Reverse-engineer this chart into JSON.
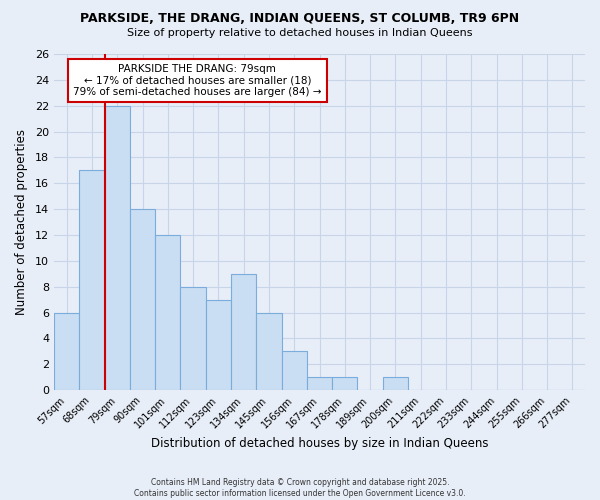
{
  "title1": "PARKSIDE, THE DRANG, INDIAN QUEENS, ST COLUMB, TR9 6PN",
  "title2": "Size of property relative to detached houses in Indian Queens",
  "xlabel": "Distribution of detached houses by size in Indian Queens",
  "ylabel": "Number of detached properties",
  "bar_labels": [
    "57sqm",
    "68sqm",
    "79sqm",
    "90sqm",
    "101sqm",
    "112sqm",
    "123sqm",
    "134sqm",
    "145sqm",
    "156sqm",
    "167sqm",
    "178sqm",
    "189sqm",
    "200sqm",
    "211sqm",
    "222sqm",
    "233sqm",
    "244sqm",
    "255sqm",
    "266sqm",
    "277sqm"
  ],
  "bar_values": [
    6,
    17,
    22,
    14,
    12,
    8,
    7,
    9,
    6,
    3,
    1,
    1,
    0,
    1,
    0,
    0,
    0,
    0,
    0,
    0,
    0
  ],
  "bar_color": "#c9ddf3",
  "bar_edge_color": "#7aaddb",
  "vline_color": "#cc0000",
  "ylim": [
    0,
    26
  ],
  "yticks": [
    0,
    2,
    4,
    6,
    8,
    10,
    12,
    14,
    16,
    18,
    20,
    22,
    24,
    26
  ],
  "annotation_title": "PARKSIDE THE DRANG: 79sqm",
  "annotation_line1": "← 17% of detached houses are smaller (18)",
  "annotation_line2": "79% of semi-detached houses are larger (84) →",
  "annotation_box_color": "#ffffff",
  "annotation_box_edge": "#cc0000",
  "background_color": "#e8eef8",
  "plot_bg_color": "#e8eef8",
  "grid_color": "#c8d4e8",
  "footer1": "Contains HM Land Registry data © Crown copyright and database right 2025.",
  "footer2": "Contains public sector information licensed under the Open Government Licence v3.0."
}
